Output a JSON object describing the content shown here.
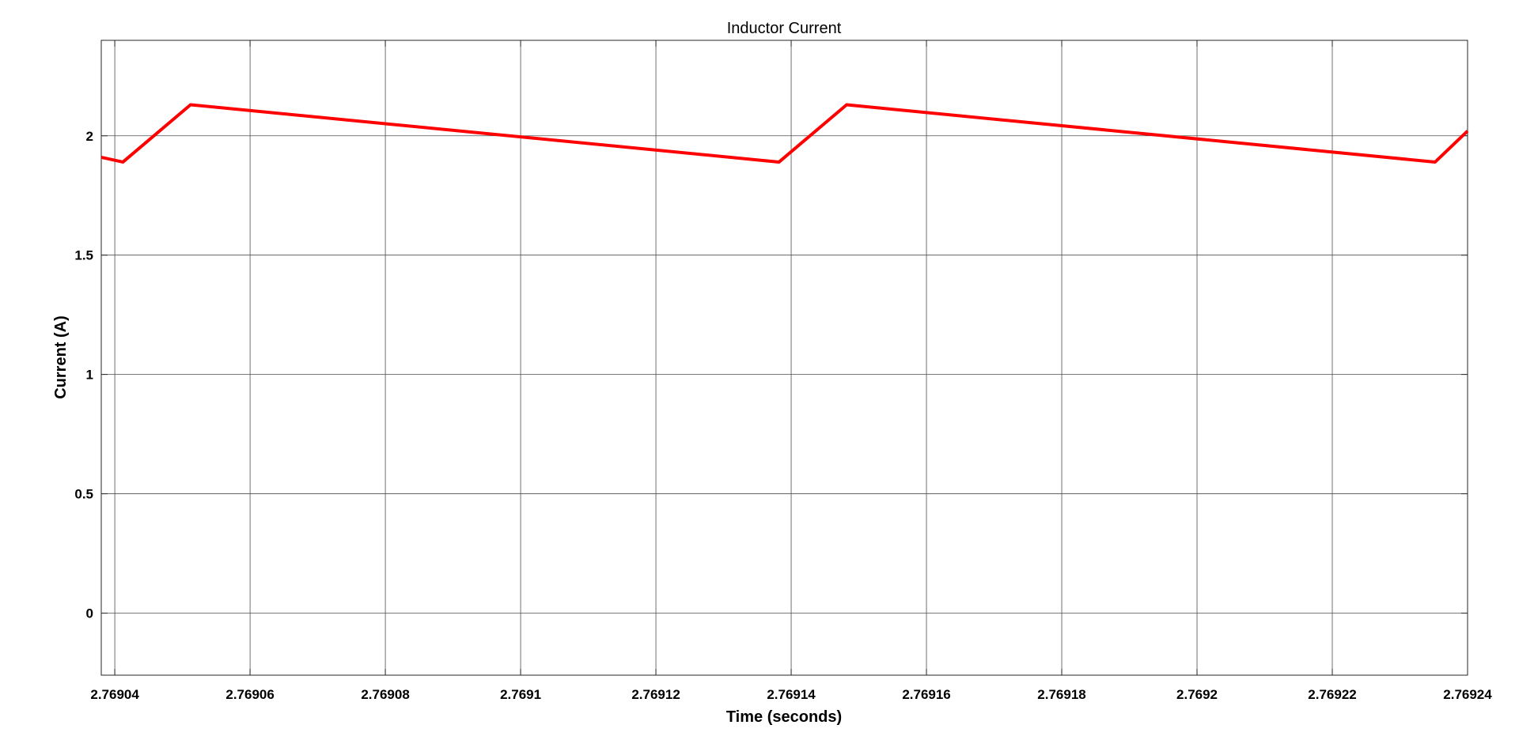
{
  "chart_data": {
    "type": "line",
    "title": "Inductor Current",
    "xlabel": "Time (seconds)",
    "ylabel": "Current (A)",
    "xlim": [
      2.769038,
      2.76924
    ],
    "ylim": [
      -0.26,
      2.4
    ],
    "grid": true,
    "x_ticks": [
      2.76904,
      2.76906,
      2.76908,
      2.7691,
      2.76912,
      2.76914,
      2.76916,
      2.76918,
      2.7692,
      2.76922,
      2.76924
    ],
    "x_tick_labels": [
      "2.76904",
      "2.76906",
      "2.76908",
      "2.7691",
      "2.76912",
      "2.76914",
      "2.76916",
      "2.76918",
      "2.7692",
      "2.76922",
      "2.76924"
    ],
    "y_ticks": [
      0,
      0.5,
      1,
      1.5,
      2
    ],
    "y_tick_labels": [
      "0",
      "0.5",
      "1",
      "1.5",
      "2"
    ],
    "series": [
      {
        "color": "#ff0000",
        "x": [
          2.769038,
          2.7690412,
          2.7690512,
          2.7691382,
          2.7691482,
          2.7692352,
          2.76924
        ],
        "y": [
          1.91,
          1.89,
          2.13,
          1.89,
          2.13,
          1.89,
          2.02
        ]
      }
    ]
  }
}
